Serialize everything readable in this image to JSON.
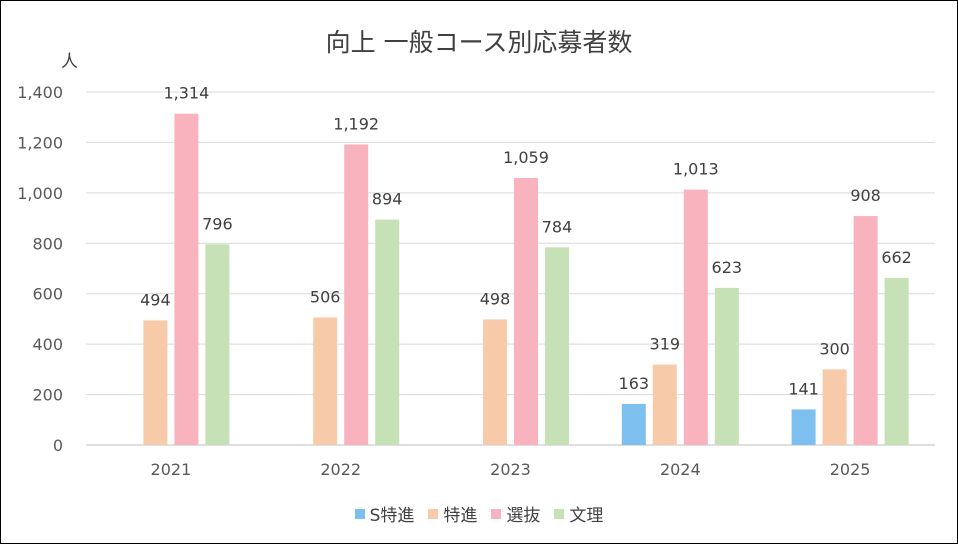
{
  "chart_data": {
    "type": "bar",
    "title": "向上 一般コース別応募者数",
    "ylabel": "人",
    "xlabel": "",
    "ylim": [
      0,
      1400
    ],
    "yticks": [
      0,
      200,
      400,
      600,
      800,
      1000,
      1200,
      1400
    ],
    "ytick_labels": [
      "0",
      "200",
      "400",
      "600",
      "800",
      "1,000",
      "1,200",
      "1,400"
    ],
    "grid": true,
    "legend_position": "bottom",
    "categories": [
      "2021",
      "2022",
      "2023",
      "2024",
      "2025"
    ],
    "series": [
      {
        "name": "S特進",
        "color": "#7dbfee",
        "values": [
          null,
          null,
          null,
          163,
          141
        ],
        "labels": [
          "",
          "",
          "",
          "163",
          "141"
        ]
      },
      {
        "name": "特進",
        "color": "#f7caa9",
        "values": [
          494,
          506,
          498,
          319,
          300
        ],
        "labels": [
          "494",
          "506",
          "498",
          "319",
          "300"
        ]
      },
      {
        "name": "選抜",
        "color": "#f8b3bf",
        "values": [
          1314,
          1192,
          1059,
          1013,
          908
        ],
        "labels": [
          "1,314",
          "1,192",
          "1,059",
          "1,013",
          "908"
        ]
      },
      {
        "name": "文理",
        "color": "#c6e1b5",
        "values": [
          796,
          894,
          784,
          623,
          662
        ],
        "labels": [
          "796",
          "894",
          "784",
          "623",
          "662"
        ]
      }
    ]
  }
}
